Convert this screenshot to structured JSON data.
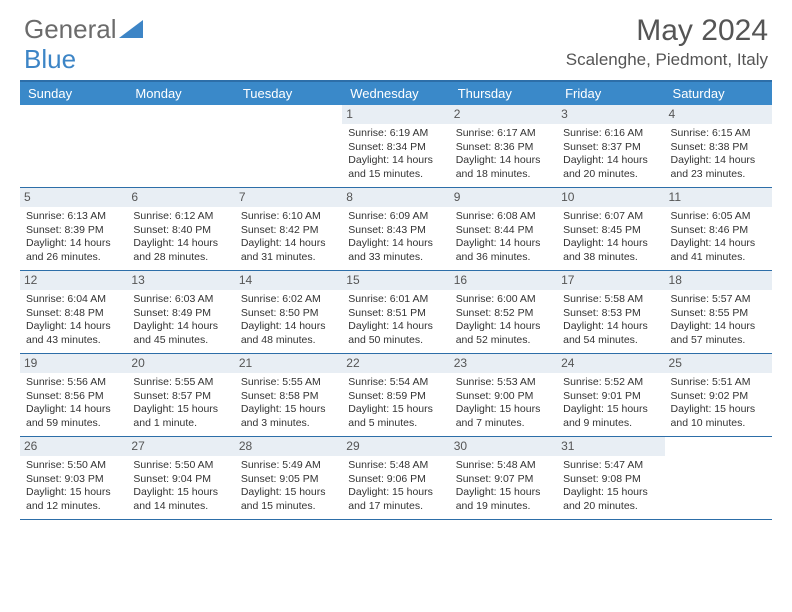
{
  "logo": {
    "part1": "General",
    "part2": "Blue"
  },
  "title": "May 2024",
  "location": "Scalenghe, Piedmont, Italy",
  "colors": {
    "header_bg": "#3a89c9",
    "border": "#2d6ea8",
    "daynum_bg": "#e8eef4",
    "logo_gray": "#6b6b6b",
    "logo_blue": "#3d85c6",
    "text": "#555555"
  },
  "day_headers": [
    "Sunday",
    "Monday",
    "Tuesday",
    "Wednesday",
    "Thursday",
    "Friday",
    "Saturday"
  ],
  "weeks": [
    [
      {
        "empty": true
      },
      {
        "empty": true
      },
      {
        "empty": true
      },
      {
        "n": "1",
        "sunrise": "6:19 AM",
        "sunset": "8:34 PM",
        "daylight": "14 hours and 15 minutes."
      },
      {
        "n": "2",
        "sunrise": "6:17 AM",
        "sunset": "8:36 PM",
        "daylight": "14 hours and 18 minutes."
      },
      {
        "n": "3",
        "sunrise": "6:16 AM",
        "sunset": "8:37 PM",
        "daylight": "14 hours and 20 minutes."
      },
      {
        "n": "4",
        "sunrise": "6:15 AM",
        "sunset": "8:38 PM",
        "daylight": "14 hours and 23 minutes."
      }
    ],
    [
      {
        "n": "5",
        "sunrise": "6:13 AM",
        "sunset": "8:39 PM",
        "daylight": "14 hours and 26 minutes."
      },
      {
        "n": "6",
        "sunrise": "6:12 AM",
        "sunset": "8:40 PM",
        "daylight": "14 hours and 28 minutes."
      },
      {
        "n": "7",
        "sunrise": "6:10 AM",
        "sunset": "8:42 PM",
        "daylight": "14 hours and 31 minutes."
      },
      {
        "n": "8",
        "sunrise": "6:09 AM",
        "sunset": "8:43 PM",
        "daylight": "14 hours and 33 minutes."
      },
      {
        "n": "9",
        "sunrise": "6:08 AM",
        "sunset": "8:44 PM",
        "daylight": "14 hours and 36 minutes."
      },
      {
        "n": "10",
        "sunrise": "6:07 AM",
        "sunset": "8:45 PM",
        "daylight": "14 hours and 38 minutes."
      },
      {
        "n": "11",
        "sunrise": "6:05 AM",
        "sunset": "8:46 PM",
        "daylight": "14 hours and 41 minutes."
      }
    ],
    [
      {
        "n": "12",
        "sunrise": "6:04 AM",
        "sunset": "8:48 PM",
        "daylight": "14 hours and 43 minutes."
      },
      {
        "n": "13",
        "sunrise": "6:03 AM",
        "sunset": "8:49 PM",
        "daylight": "14 hours and 45 minutes."
      },
      {
        "n": "14",
        "sunrise": "6:02 AM",
        "sunset": "8:50 PM",
        "daylight": "14 hours and 48 minutes."
      },
      {
        "n": "15",
        "sunrise": "6:01 AM",
        "sunset": "8:51 PM",
        "daylight": "14 hours and 50 minutes."
      },
      {
        "n": "16",
        "sunrise": "6:00 AM",
        "sunset": "8:52 PM",
        "daylight": "14 hours and 52 minutes."
      },
      {
        "n": "17",
        "sunrise": "5:58 AM",
        "sunset": "8:53 PM",
        "daylight": "14 hours and 54 minutes."
      },
      {
        "n": "18",
        "sunrise": "5:57 AM",
        "sunset": "8:55 PM",
        "daylight": "14 hours and 57 minutes."
      }
    ],
    [
      {
        "n": "19",
        "sunrise": "5:56 AM",
        "sunset": "8:56 PM",
        "daylight": "14 hours and 59 minutes."
      },
      {
        "n": "20",
        "sunrise": "5:55 AM",
        "sunset": "8:57 PM",
        "daylight": "15 hours and 1 minute."
      },
      {
        "n": "21",
        "sunrise": "5:55 AM",
        "sunset": "8:58 PM",
        "daylight": "15 hours and 3 minutes."
      },
      {
        "n": "22",
        "sunrise": "5:54 AM",
        "sunset": "8:59 PM",
        "daylight": "15 hours and 5 minutes."
      },
      {
        "n": "23",
        "sunrise": "5:53 AM",
        "sunset": "9:00 PM",
        "daylight": "15 hours and 7 minutes."
      },
      {
        "n": "24",
        "sunrise": "5:52 AM",
        "sunset": "9:01 PM",
        "daylight": "15 hours and 9 minutes."
      },
      {
        "n": "25",
        "sunrise": "5:51 AM",
        "sunset": "9:02 PM",
        "daylight": "15 hours and 10 minutes."
      }
    ],
    [
      {
        "n": "26",
        "sunrise": "5:50 AM",
        "sunset": "9:03 PM",
        "daylight": "15 hours and 12 minutes."
      },
      {
        "n": "27",
        "sunrise": "5:50 AM",
        "sunset": "9:04 PM",
        "daylight": "15 hours and 14 minutes."
      },
      {
        "n": "28",
        "sunrise": "5:49 AM",
        "sunset": "9:05 PM",
        "daylight": "15 hours and 15 minutes."
      },
      {
        "n": "29",
        "sunrise": "5:48 AM",
        "sunset": "9:06 PM",
        "daylight": "15 hours and 17 minutes."
      },
      {
        "n": "30",
        "sunrise": "5:48 AM",
        "sunset": "9:07 PM",
        "daylight": "15 hours and 19 minutes."
      },
      {
        "n": "31",
        "sunrise": "5:47 AM",
        "sunset": "9:08 PM",
        "daylight": "15 hours and 20 minutes."
      },
      {
        "empty": true
      }
    ]
  ],
  "labels": {
    "sunrise": "Sunrise: ",
    "sunset": "Sunset: ",
    "daylight": "Daylight: "
  }
}
